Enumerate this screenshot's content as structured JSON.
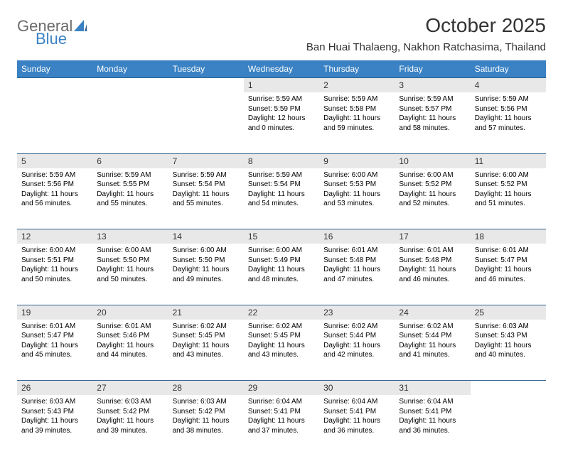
{
  "logo": {
    "text1": "General",
    "text2": "Blue",
    "color1": "#6b6b6b",
    "color2": "#3a82c4"
  },
  "title": "October 2025",
  "location": "Ban Huai Thalaeng, Nakhon Ratchasima, Thailand",
  "header_bg": "#3a82c4",
  "header_fg": "#ffffff",
  "daynum_bg": "#e8e8e8",
  "border_color": "#2d5f8f",
  "days": [
    "Sunday",
    "Monday",
    "Tuesday",
    "Wednesday",
    "Thursday",
    "Friday",
    "Saturday"
  ],
  "weeks": [
    [
      null,
      null,
      null,
      {
        "n": "1",
        "sr": "5:59 AM",
        "ss": "5:59 PM",
        "dl": "12 hours and 0 minutes."
      },
      {
        "n": "2",
        "sr": "5:59 AM",
        "ss": "5:58 PM",
        "dl": "11 hours and 59 minutes."
      },
      {
        "n": "3",
        "sr": "5:59 AM",
        "ss": "5:57 PM",
        "dl": "11 hours and 58 minutes."
      },
      {
        "n": "4",
        "sr": "5:59 AM",
        "ss": "5:56 PM",
        "dl": "11 hours and 57 minutes."
      }
    ],
    [
      {
        "n": "5",
        "sr": "5:59 AM",
        "ss": "5:56 PM",
        "dl": "11 hours and 56 minutes."
      },
      {
        "n": "6",
        "sr": "5:59 AM",
        "ss": "5:55 PM",
        "dl": "11 hours and 55 minutes."
      },
      {
        "n": "7",
        "sr": "5:59 AM",
        "ss": "5:54 PM",
        "dl": "11 hours and 55 minutes."
      },
      {
        "n": "8",
        "sr": "5:59 AM",
        "ss": "5:54 PM",
        "dl": "11 hours and 54 minutes."
      },
      {
        "n": "9",
        "sr": "6:00 AM",
        "ss": "5:53 PM",
        "dl": "11 hours and 53 minutes."
      },
      {
        "n": "10",
        "sr": "6:00 AM",
        "ss": "5:52 PM",
        "dl": "11 hours and 52 minutes."
      },
      {
        "n": "11",
        "sr": "6:00 AM",
        "ss": "5:52 PM",
        "dl": "11 hours and 51 minutes."
      }
    ],
    [
      {
        "n": "12",
        "sr": "6:00 AM",
        "ss": "5:51 PM",
        "dl": "11 hours and 50 minutes."
      },
      {
        "n": "13",
        "sr": "6:00 AM",
        "ss": "5:50 PM",
        "dl": "11 hours and 50 minutes."
      },
      {
        "n": "14",
        "sr": "6:00 AM",
        "ss": "5:50 PM",
        "dl": "11 hours and 49 minutes."
      },
      {
        "n": "15",
        "sr": "6:00 AM",
        "ss": "5:49 PM",
        "dl": "11 hours and 48 minutes."
      },
      {
        "n": "16",
        "sr": "6:01 AM",
        "ss": "5:48 PM",
        "dl": "11 hours and 47 minutes."
      },
      {
        "n": "17",
        "sr": "6:01 AM",
        "ss": "5:48 PM",
        "dl": "11 hours and 46 minutes."
      },
      {
        "n": "18",
        "sr": "6:01 AM",
        "ss": "5:47 PM",
        "dl": "11 hours and 46 minutes."
      }
    ],
    [
      {
        "n": "19",
        "sr": "6:01 AM",
        "ss": "5:47 PM",
        "dl": "11 hours and 45 minutes."
      },
      {
        "n": "20",
        "sr": "6:01 AM",
        "ss": "5:46 PM",
        "dl": "11 hours and 44 minutes."
      },
      {
        "n": "21",
        "sr": "6:02 AM",
        "ss": "5:45 PM",
        "dl": "11 hours and 43 minutes."
      },
      {
        "n": "22",
        "sr": "6:02 AM",
        "ss": "5:45 PM",
        "dl": "11 hours and 43 minutes."
      },
      {
        "n": "23",
        "sr": "6:02 AM",
        "ss": "5:44 PM",
        "dl": "11 hours and 42 minutes."
      },
      {
        "n": "24",
        "sr": "6:02 AM",
        "ss": "5:44 PM",
        "dl": "11 hours and 41 minutes."
      },
      {
        "n": "25",
        "sr": "6:03 AM",
        "ss": "5:43 PM",
        "dl": "11 hours and 40 minutes."
      }
    ],
    [
      {
        "n": "26",
        "sr": "6:03 AM",
        "ss": "5:43 PM",
        "dl": "11 hours and 39 minutes."
      },
      {
        "n": "27",
        "sr": "6:03 AM",
        "ss": "5:42 PM",
        "dl": "11 hours and 39 minutes."
      },
      {
        "n": "28",
        "sr": "6:03 AM",
        "ss": "5:42 PM",
        "dl": "11 hours and 38 minutes."
      },
      {
        "n": "29",
        "sr": "6:04 AM",
        "ss": "5:41 PM",
        "dl": "11 hours and 37 minutes."
      },
      {
        "n": "30",
        "sr": "6:04 AM",
        "ss": "5:41 PM",
        "dl": "11 hours and 36 minutes."
      },
      {
        "n": "31",
        "sr": "6:04 AM",
        "ss": "5:41 PM",
        "dl": "11 hours and 36 minutes."
      },
      null
    ]
  ],
  "labels": {
    "sunrise": "Sunrise:",
    "sunset": "Sunset:",
    "daylight": "Daylight:"
  }
}
